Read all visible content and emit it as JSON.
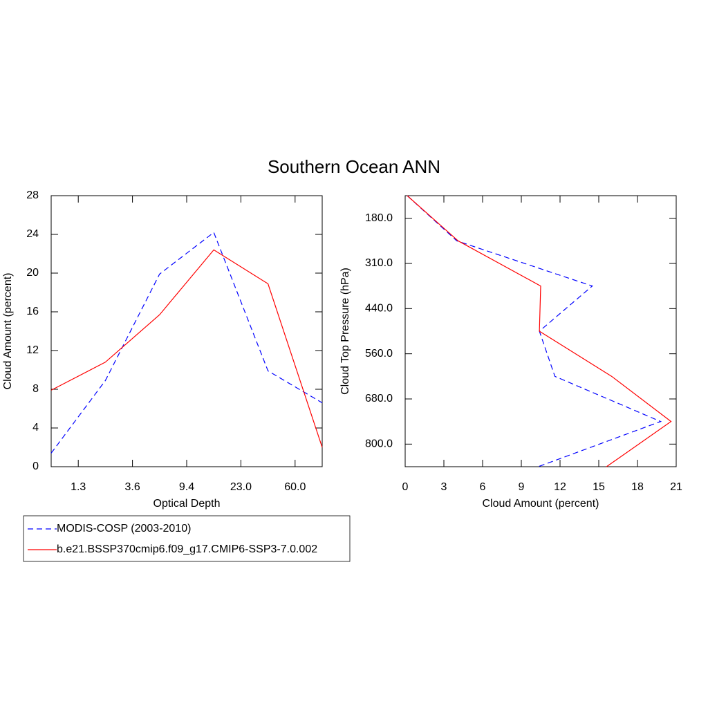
{
  "title": "Southern Ocean ANN",
  "chart_data": [
    {
      "type": "line",
      "orientation": "vertical",
      "xlabel": "Optical Depth",
      "ylabel": "Cloud Amount (percent)",
      "x": [
        0,
        1,
        2,
        3,
        4,
        5
      ],
      "xlim": [
        0,
        5
      ],
      "xticks": [
        {
          "value": 0.5,
          "label": "1.3"
        },
        {
          "value": 1.5,
          "label": "3.6"
        },
        {
          "value": 2.5,
          "label": "9.4"
        },
        {
          "value": 3.5,
          "label": "23.0"
        },
        {
          "value": 4.5,
          "label": "60.0"
        }
      ],
      "ylim": [
        0,
        28
      ],
      "yticks": [
        0,
        4,
        8,
        12,
        16,
        20,
        24,
        28
      ],
      "series": [
        {
          "name": "MODIS-COSP (2003-2010)",
          "color": "#0000ff",
          "line_style": "dashed",
          "values": [
            1.4,
            8.9,
            19.9,
            24.2,
            9.9,
            6.6
          ]
        },
        {
          "name": "b.e21.BSSP370cmip6.f09_g17.CMIP6-SSP3-7.0.002",
          "color": "#ff0000",
          "line_style": "solid",
          "values": [
            7.9,
            10.8,
            15.7,
            22.4,
            18.9,
            2.0
          ]
        }
      ]
    },
    {
      "type": "line",
      "orientation": "horizontal",
      "xlabel": "Cloud Amount (percent)",
      "ylabel": "Cloud Top Pressure (hPa)",
      "y": [
        0,
        1,
        2,
        3,
        4,
        5,
        6
      ],
      "ylim": [
        6,
        0
      ],
      "yticks": [
        {
          "value": 0.5,
          "label": "180.0"
        },
        {
          "value": 1.5,
          "label": "310.0"
        },
        {
          "value": 2.5,
          "label": "440.0"
        },
        {
          "value": 3.5,
          "label": "560.0"
        },
        {
          "value": 4.5,
          "label": "680.0"
        },
        {
          "value": 5.5,
          "label": "800.0"
        }
      ],
      "xlim": [
        0,
        21
      ],
      "xticks": [
        0,
        3,
        6,
        9,
        12,
        15,
        18,
        21
      ],
      "series": [
        {
          "name": "MODIS-COSP (2003-2010)",
          "color": "#0000ff",
          "line_style": "dashed",
          "values": [
            0.16,
            4.0,
            14.5,
            10.4,
            11.6,
            19.8,
            10.3
          ]
        },
        {
          "name": "b.e21.BSSP370cmip6.f09_g17.CMIP6-SSP3-7.0.002",
          "color": "#ff0000",
          "line_style": "solid",
          "values": [
            0.16,
            4.1,
            10.5,
            10.4,
            16.0,
            20.6,
            15.6
          ]
        }
      ]
    }
  ]
}
